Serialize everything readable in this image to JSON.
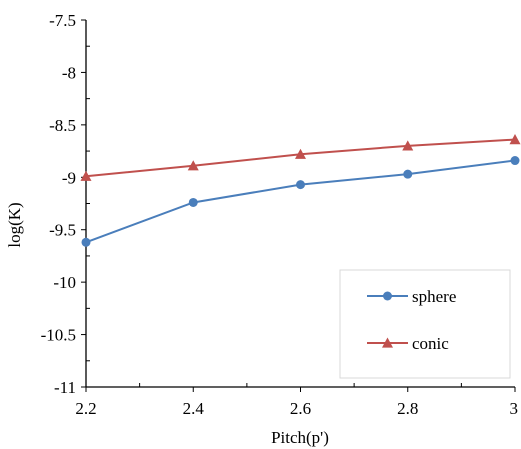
{
  "chart_data": {
    "type": "line",
    "title": "",
    "xlabel": "Pitch(p')",
    "ylabel": "log(K)",
    "x": [
      2.2,
      2.4,
      2.6,
      2.8,
      3.0
    ],
    "xlim": [
      2.2,
      3.0
    ],
    "ylim": [
      -11,
      -7.5
    ],
    "xticks": [
      "2.2",
      "2.4",
      "2.6",
      "2.8",
      "3"
    ],
    "yticks": [
      "-7.5",
      "-8",
      "-8.5",
      "-9",
      "-9.5",
      "-10",
      "-10.5",
      "-11"
    ],
    "grid": false,
    "legend_position": "bottom-right",
    "series": [
      {
        "name": "sphere",
        "color": "#4a7ebb",
        "marker": "circle",
        "values": [
          -9.62,
          -9.24,
          -9.07,
          -8.97,
          -8.84
        ]
      },
      {
        "name": "conic",
        "color": "#c0504d",
        "marker": "triangle",
        "values": [
          -8.99,
          -8.89,
          -8.78,
          -8.7,
          -8.64
        ]
      }
    ]
  }
}
